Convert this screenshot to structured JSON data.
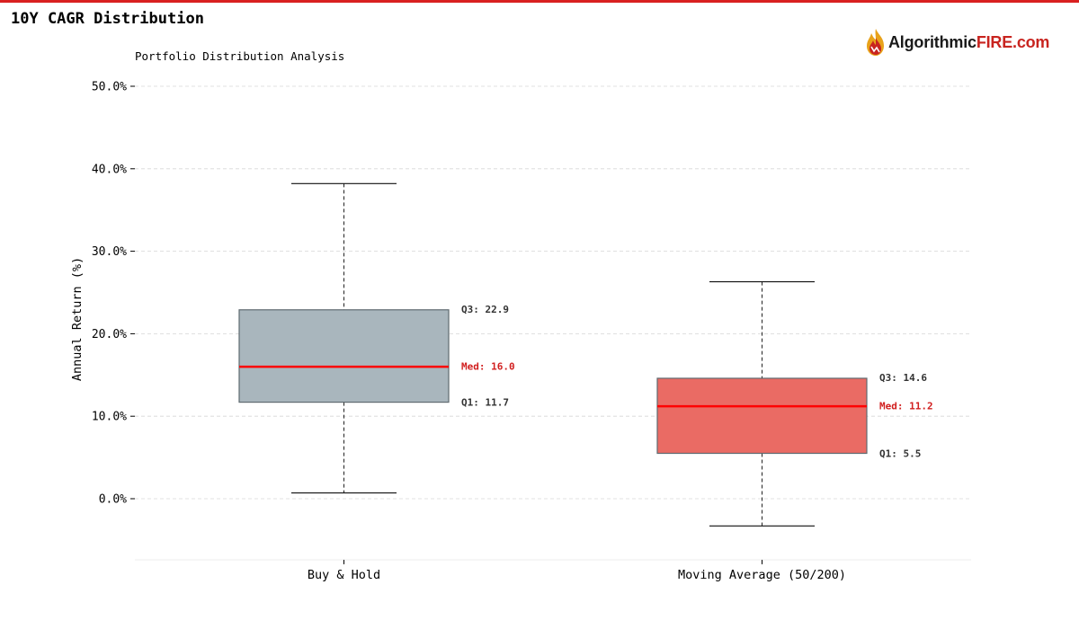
{
  "header": {
    "title": "10Y CAGR Distribution",
    "logo_text_dark": "Algorithmic",
    "logo_text_red": "FIRE.com"
  },
  "colors": {
    "accent": "#d92020",
    "buy_hold_fill": "#a9b6bd",
    "moving_avg_fill": "#ea6b64",
    "median_line": "#ff0000",
    "median_label": "#d11f1f"
  },
  "chart_data": {
    "type": "boxplot",
    "title": "Portfolio Distribution Analysis",
    "xlabel": "",
    "ylabel": "Annual Return (%)",
    "ylim": [
      -7.5,
      52
    ],
    "yticks": [
      0,
      10,
      20,
      30,
      40,
      50
    ],
    "ytick_labels": [
      "0.0%",
      "10.0%",
      "20.0%",
      "30.0%",
      "40.0%",
      "50.0%"
    ],
    "grid": true,
    "categories": [
      "Buy & Hold",
      "Moving Average (50/200)"
    ],
    "boxes": [
      {
        "name": "Buy & Hold",
        "whisker_low": 0.7,
        "q1": 11.7,
        "median": 16.0,
        "q3": 22.9,
        "whisker_high": 38.2,
        "fill": "#a9b6bd",
        "labels": {
          "q3": "Q3: 22.9",
          "median": "Med: 16.0",
          "q1": "Q1: 11.7"
        }
      },
      {
        "name": "Moving Average (50/200)",
        "whisker_low": -3.3,
        "q1": 5.5,
        "median": 11.2,
        "q3": 14.6,
        "whisker_high": 26.3,
        "fill": "#ea6b64",
        "labels": {
          "q3": "Q3: 14.6",
          "median": "Med: 11.2",
          "q1": "Q1: 5.5"
        }
      }
    ]
  }
}
